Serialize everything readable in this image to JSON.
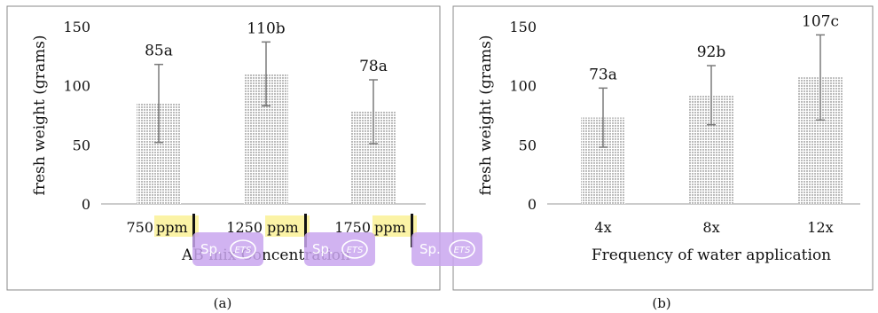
{
  "panels": [
    {
      "caption": "(a)",
      "chart_data": {
        "type": "bar",
        "categories": [
          "750 ppm",
          "1250 ppm",
          "1750 ppm"
        ],
        "values": [
          85,
          110,
          78
        ],
        "error_high": [
          118,
          137,
          105
        ],
        "error_low": [
          52,
          83,
          51
        ],
        "data_labels": [
          "85a",
          "110b",
          "78a"
        ],
        "xlabel": "AB mix Concentration",
        "ylabel": "fresh weight (grams)",
        "ylim": [
          0,
          150
        ],
        "yticks": [
          0,
          50,
          100,
          150
        ],
        "grid": false,
        "category_parts": [
          {
            "num": "750",
            "unit": "ppm"
          },
          {
            "num": "1250",
            "unit": "ppm"
          },
          {
            "num": "1750",
            "unit": "ppm"
          }
        ]
      },
      "badges": [
        {
          "text": "Sp.",
          "icon": "ETS"
        },
        {
          "text": "Sp.",
          "icon": "ETS"
        },
        {
          "text": "Sp.",
          "icon": "ETS"
        }
      ]
    },
    {
      "caption": "(b)",
      "chart_data": {
        "type": "bar",
        "categories": [
          "4x",
          "8x",
          "12x"
        ],
        "values": [
          73,
          92,
          107
        ],
        "error_high": [
          98,
          117,
          143
        ],
        "error_low": [
          48,
          67,
          71
        ],
        "data_labels": [
          "73a",
          "92b",
          "107c"
        ],
        "xlabel": "Frequency of water application",
        "ylabel": "fresh weight (grams)",
        "ylim": [
          0,
          150
        ],
        "yticks": [
          0,
          50,
          100,
          150
        ],
        "grid": false
      }
    }
  ],
  "colors": {
    "bar_dot": "#555555",
    "error_bar": "#7a7a7a",
    "frame": "#888888",
    "highlight": "#fbf3a6",
    "badge": "#c9a6ee",
    "badge_text": "#ffffff"
  }
}
